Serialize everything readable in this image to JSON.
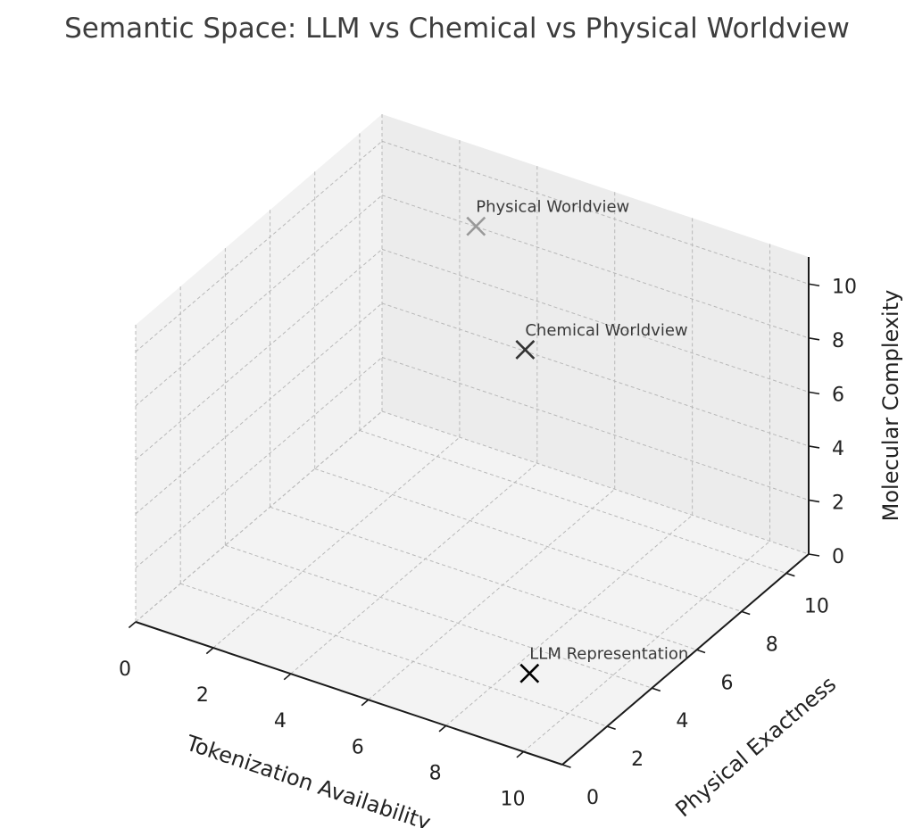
{
  "chart_data": {
    "type": "scatter",
    "title": "Semantic Space: LLM vs Chemical vs Physical Worldview",
    "xlabel": "Tokenization Availability",
    "ylabel": "Physical Exactness",
    "zlabel": "Molecular Complexity",
    "xlim": [
      0,
      11
    ],
    "ylim": [
      0,
      11
    ],
    "zlim": [
      0,
      11
    ],
    "xticks": [
      0,
      2,
      4,
      6,
      8,
      10
    ],
    "yticks": [
      0,
      2,
      4,
      6,
      8,
      10
    ],
    "zticks": [
      0,
      2,
      4,
      6,
      8,
      10
    ],
    "grid": true,
    "marker": "x",
    "points": [
      {
        "label": "LLM Representation",
        "x": 9,
        "y": 2,
        "z": 1,
        "color": "#000000"
      },
      {
        "label": "Chemical Worldview",
        "x": 6,
        "y": 7,
        "z": 8,
        "color": "#333333"
      },
      {
        "label": "Physical Worldview",
        "x": 3,
        "y": 10,
        "z": 9,
        "color": "#999999"
      }
    ],
    "colors": {
      "pane_left": "#f2f2f2",
      "pane_back": "#ececec",
      "pane_floor": "#f3f3f3",
      "grid": "#b8b8b8",
      "axis": "#1a1a1a"
    }
  }
}
